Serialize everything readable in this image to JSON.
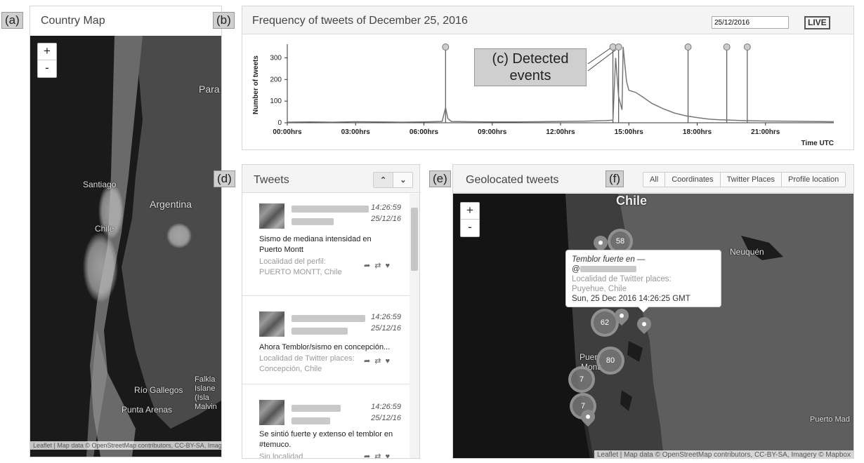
{
  "panel_labels": {
    "a": "(a)",
    "b": "(b)",
    "c": "(c)",
    "d": "(d)",
    "e": "(e)",
    "f": "(f)"
  },
  "country_map": {
    "title": "Country Map",
    "zoom_in": "+",
    "zoom_out": "-",
    "place_labels": {
      "santiago": "Santiago",
      "chile": "Chile",
      "argentina": "Argentina",
      "para": "Para",
      "rio_gallegos": "Río Gallegos",
      "punta_arenas": "Punta Arenas",
      "falkland_1": "Falkla",
      "falkland_2": "Islane",
      "falkland_3": "(Isla",
      "falkland_4": "Malvin"
    },
    "attribution": "Leaflet | Map data © OpenStreetMap contributors, CC-BY-SA, Imagery © Mapbox"
  },
  "frequency": {
    "title": "Frequency of tweets of December 25, 2016",
    "date_value": "25/12/2016",
    "live_label": "LIVE",
    "annotation_line1": "(c) Detected",
    "annotation_line2": "events"
  },
  "chart_data": {
    "type": "line",
    "title": "Frequency of tweets of December 25, 2016",
    "xlabel": "Time UTC",
    "ylabel": "Number of tweets",
    "xlim": [
      0,
      24
    ],
    "ylim": [
      0,
      350
    ],
    "x_tick_labels": [
      "00:00hrs",
      "03:00hrs",
      "06:00hrs",
      "09:00hrs",
      "12:00hrs",
      "15:00hrs",
      "18:00hrs",
      "21:00hrs"
    ],
    "x_ticks": [
      0,
      3,
      6,
      9,
      12,
      15,
      18,
      21
    ],
    "y_tick_labels": [
      "0",
      "100",
      "200",
      "300"
    ],
    "y_ticks": [
      0,
      100,
      200,
      300
    ],
    "series": [
      {
        "x": [
          0,
          1,
          2,
          3,
          4,
          5,
          6,
          6.8,
          6.95,
          7.05,
          7.2,
          8,
          9,
          10,
          11,
          12,
          13,
          14.0,
          14.3,
          14.42,
          14.55,
          14.7,
          14.75,
          14.9,
          15.0,
          15.3,
          15.6,
          16,
          16.5,
          17,
          17.5,
          18,
          18.5,
          19,
          19.5,
          20,
          21,
          22,
          23,
          24
        ],
        "y": [
          3,
          4,
          3,
          5,
          4,
          3,
          4,
          6,
          70,
          20,
          6,
          5,
          4,
          4,
          5,
          6,
          7,
          10,
          12,
          300,
          120,
          60,
          350,
          190,
          150,
          140,
          120,
          90,
          65,
          45,
          32,
          24,
          17,
          14,
          12,
          10,
          8,
          7,
          6,
          5
        ]
      }
    ],
    "events": [
      6.95,
      14.3,
      14.55,
      17.6,
      19.3,
      20.2
    ]
  },
  "tweets_panel": {
    "title": "Tweets",
    "up_label": "⌃",
    "down_label": "⌄",
    "tweets": [
      {
        "time": "14:26:59",
        "date": "25/12/16",
        "text": "Sismo de mediana intensidad en Puerto Montt",
        "loc1": "Localidad del perfil:",
        "loc2": "PUERTO MONTT, Chile"
      },
      {
        "time": "14:26:59",
        "date": "25/12/16",
        "text": "Ahora Temblor/sismo en concepción...",
        "loc1": "Localidad de Twitter places:",
        "loc2": "Concepción, Chile"
      },
      {
        "time": "14:26:59",
        "date": "25/12/16",
        "text": "Se sintió fuerte y extenso el temblor en #temuco.",
        "loc1": "Sin localidad",
        "loc2": ""
      }
    ]
  },
  "geo_panel": {
    "title": "Geolocated tweets",
    "filters": [
      "All",
      "Coordinates",
      "Twitter Places",
      "Profile location"
    ],
    "zoom_in": "+",
    "zoom_out": "-",
    "place_labels": {
      "chile": "Chile",
      "neuquen": "Neuquén",
      "puerto_1": "Puer",
      "puerto_2": "Montt",
      "puerto_mad": "Puerto Mad"
    },
    "clusters": [
      "58",
      "62",
      "80",
      "7",
      "7"
    ],
    "popup": {
      "line1": "Temblor fuerte en —",
      "line2": "@",
      "line3": "Localidad de Twitter places:",
      "line4": "Puyehue, Chile",
      "line5": "Sun, 25 Dec 2016 14:26:25 GMT"
    },
    "attribution": "Leaflet | Map data © OpenStreetMap contributors, CC-BY-SA, Imagery © Mapbox"
  }
}
